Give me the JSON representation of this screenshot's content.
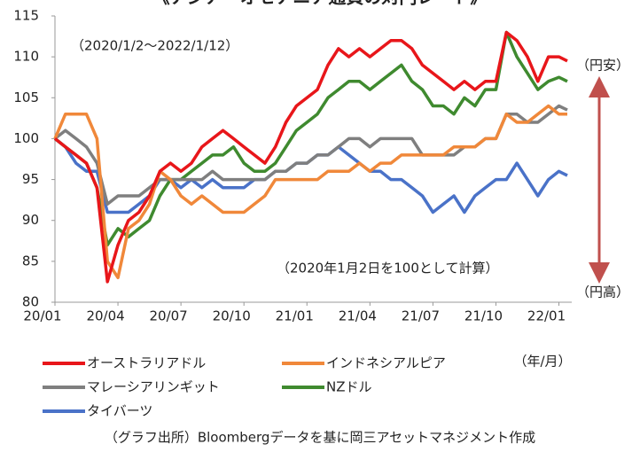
{
  "chart_data": {
    "type": "line",
    "title": "《アジア・オセアニア通貨の対円レート》",
    "annotations": [
      "（2020/1/2〜2022/1/12）",
      "（2020年1月2日を100として計算）",
      "（円安）",
      "（円高）",
      "（年/月）"
    ],
    "source": "（グラフ出所）Bloombergデータを基に岡三アセットマネジメント作成",
    "x": [
      0,
      0.5,
      1,
      1.5,
      2,
      2.5,
      3,
      3.5,
      4,
      4.5,
      5,
      5.5,
      6,
      6.5,
      7,
      7.5,
      8,
      8.5,
      9,
      9.5,
      10,
      10.5,
      11,
      11.5,
      12,
      12.5,
      13,
      13.5,
      14,
      14.5,
      15,
      15.5,
      16,
      16.5,
      17,
      17.5,
      18,
      18.5,
      19,
      19.5,
      20,
      20.5,
      21,
      21.5,
      22,
      22.5,
      23,
      23.5,
      24,
      24.4
    ],
    "xlim": [
      0,
      24.4
    ],
    "xticks": [
      {
        "value": 0,
        "label": "20/01"
      },
      {
        "value": 3,
        "label": "20/04"
      },
      {
        "value": 6,
        "label": "20/07"
      },
      {
        "value": 9,
        "label": "20/10"
      },
      {
        "value": 12,
        "label": "21/01"
      },
      {
        "value": 15,
        "label": "21/04"
      },
      {
        "value": 18,
        "label": "21/07"
      },
      {
        "value": 21,
        "label": "21/10"
      },
      {
        "value": 24,
        "label": "22/01"
      }
    ],
    "ylim": [
      80,
      115
    ],
    "yticks": [
      80,
      85,
      90,
      95,
      100,
      105,
      110,
      115
    ],
    "grid": false,
    "series": [
      {
        "name": "オーストラリアドル",
        "color": "#e8161a",
        "values": [
          100,
          99,
          98,
          97,
          94,
          82.5,
          87,
          90,
          91,
          93,
          96,
          97,
          96,
          97,
          99,
          100,
          101,
          100,
          99,
          98,
          97,
          99,
          102,
          104,
          105,
          106,
          109,
          111,
          110,
          111,
          110,
          111,
          112,
          112,
          111,
          109,
          108,
          107,
          106,
          107,
          106,
          107,
          107,
          113,
          112,
          110,
          107,
          110,
          110,
          109.5
        ]
      },
      {
        "name": "インドネシアルピア",
        "color": "#f0883a",
        "values": [
          100,
          103,
          103,
          103,
          100,
          85,
          83,
          89,
          90,
          92,
          96,
          95,
          93,
          92,
          93,
          92,
          91,
          91,
          91,
          92,
          93,
          95,
          95,
          95,
          95,
          95,
          96,
          96,
          96,
          97,
          96,
          97,
          97,
          98,
          98,
          98,
          98,
          98,
          99,
          99,
          99,
          100,
          100,
          103,
          102,
          102,
          103,
          104,
          103,
          103
        ]
      },
      {
        "name": "マレーシアリンギット",
        "color": "#7f7f7f",
        "values": [
          100,
          101,
          100,
          99,
          97,
          92,
          93,
          93,
          93,
          94,
          95,
          95,
          95,
          95,
          95,
          96,
          95,
          95,
          95,
          95,
          95,
          96,
          96,
          97,
          97,
          98,
          98,
          99,
          100,
          100,
          99,
          100,
          100,
          100,
          100,
          98,
          98,
          98,
          98,
          99,
          99,
          100,
          100,
          103,
          103,
          102,
          102,
          103,
          104,
          103.5
        ]
      },
      {
        "name": "NZドル",
        "color": "#3f8a2f",
        "values": [
          100,
          99,
          98,
          97,
          94,
          87,
          89,
          88,
          89,
          90,
          93,
          95,
          95,
          96,
          97,
          98,
          98,
          99,
          97,
          96,
          96,
          97,
          99,
          101,
          102,
          103,
          105,
          106,
          107,
          107,
          106,
          107,
          108,
          109,
          107,
          106,
          104,
          104,
          103,
          105,
          104,
          106,
          106,
          113,
          110,
          108,
          106,
          107,
          107.5,
          107
        ]
      },
      {
        "name": "タイバーツ",
        "color": "#4a72c8",
        "values": [
          100,
          99,
          97,
          96,
          96,
          91,
          91,
          91,
          92,
          93,
          95,
          95,
          94,
          95,
          94,
          95,
          94,
          94,
          94,
          95,
          95,
          96,
          96,
          97,
          97,
          98,
          98,
          99,
          98,
          97,
          96,
          96,
          95,
          95,
          94,
          93,
          91,
          92,
          93,
          91,
          93,
          94,
          95,
          95,
          97,
          95,
          93,
          95,
          96,
          95.5
        ]
      }
    ]
  }
}
